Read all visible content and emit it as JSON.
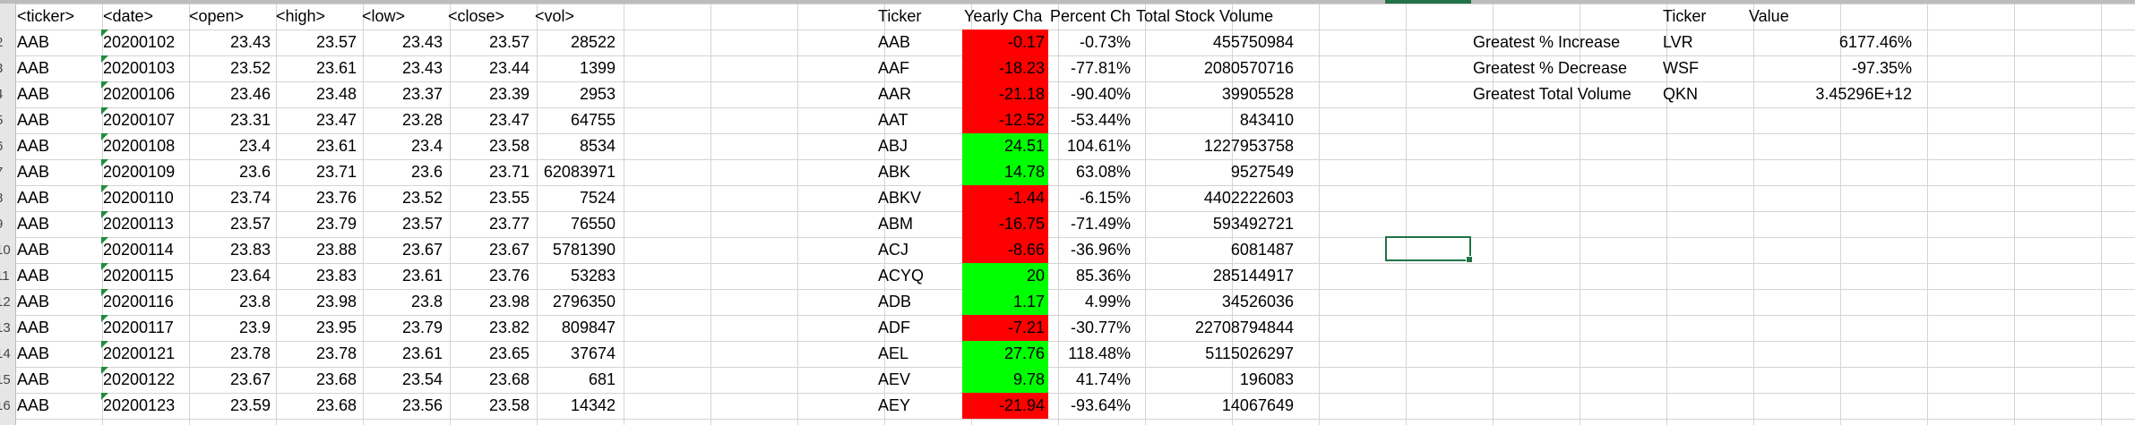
{
  "raw": {
    "headers": [
      "<ticker>",
      "<date>",
      "<open>",
      "<high>",
      "<low>",
      "<close>",
      "<vol>"
    ],
    "rows": [
      [
        "AAB",
        "20200102",
        "23.43",
        "23.57",
        "23.43",
        "23.57",
        "28522"
      ],
      [
        "AAB",
        "20200103",
        "23.52",
        "23.61",
        "23.43",
        "23.44",
        "1399"
      ],
      [
        "AAB",
        "20200106",
        "23.46",
        "23.48",
        "23.37",
        "23.39",
        "2953"
      ],
      [
        "AAB",
        "20200107",
        "23.31",
        "23.47",
        "23.28",
        "23.47",
        "64755"
      ],
      [
        "AAB",
        "20200108",
        "23.4",
        "23.61",
        "23.4",
        "23.58",
        "8534"
      ],
      [
        "AAB",
        "20200109",
        "23.6",
        "23.71",
        "23.6",
        "23.71",
        "62083971"
      ],
      [
        "AAB",
        "20200110",
        "23.74",
        "23.76",
        "23.52",
        "23.55",
        "7524"
      ],
      [
        "AAB",
        "20200113",
        "23.57",
        "23.79",
        "23.57",
        "23.77",
        "76550"
      ],
      [
        "AAB",
        "20200114",
        "23.83",
        "23.88",
        "23.67",
        "23.67",
        "5781390"
      ],
      [
        "AAB",
        "20200115",
        "23.64",
        "23.83",
        "23.61",
        "23.76",
        "53283"
      ],
      [
        "AAB",
        "20200116",
        "23.8",
        "23.98",
        "23.8",
        "23.98",
        "2796350"
      ],
      [
        "AAB",
        "20200117",
        "23.9",
        "23.95",
        "23.79",
        "23.82",
        "809847"
      ],
      [
        "AAB",
        "20200121",
        "23.78",
        "23.78",
        "23.61",
        "23.65",
        "37674"
      ],
      [
        "AAB",
        "20200122",
        "23.67",
        "23.68",
        "23.54",
        "23.68",
        "681"
      ],
      [
        "AAB",
        "20200123",
        "23.59",
        "23.68",
        "23.56",
        "23.58",
        "14342"
      ]
    ]
  },
  "row_numbers": [
    "2",
    "3",
    "4",
    "5",
    "6",
    "7",
    "8",
    "9",
    "10",
    "11",
    "12",
    "13",
    "14",
    "15",
    "16"
  ],
  "summary": {
    "headers": [
      "Ticker",
      "Yearly Cha",
      "Percent Ch",
      "Total Stock Volume"
    ],
    "rows": [
      {
        "ticker": "AAB",
        "change": "-0.17",
        "pct": "-0.73%",
        "vol": "455750984",
        "status": "negative"
      },
      {
        "ticker": "AAF",
        "change": "-18.23",
        "pct": "-77.81%",
        "vol": "2080570716",
        "status": "negative"
      },
      {
        "ticker": "AAR",
        "change": "-21.18",
        "pct": "-90.40%",
        "vol": "39905528",
        "status": "negative"
      },
      {
        "ticker": "AAT",
        "change": "-12.52",
        "pct": "-53.44%",
        "vol": "843410",
        "status": "negative"
      },
      {
        "ticker": "ABJ",
        "change": "24.51",
        "pct": "104.61%",
        "vol": "1227953758",
        "status": "positive"
      },
      {
        "ticker": "ABK",
        "change": "14.78",
        "pct": "63.08%",
        "vol": "9527549",
        "status": "positive"
      },
      {
        "ticker": "ABKV",
        "change": "-1.44",
        "pct": "-6.15%",
        "vol": "4402222603",
        "status": "negative"
      },
      {
        "ticker": "ABM",
        "change": "-16.75",
        "pct": "-71.49%",
        "vol": "593492721",
        "status": "negative"
      },
      {
        "ticker": "ACJ",
        "change": "-8.66",
        "pct": "-36.96%",
        "vol": "6081487",
        "status": "negative"
      },
      {
        "ticker": "ACYQ",
        "change": "20",
        "pct": "85.36%",
        "vol": "285144917",
        "status": "positive"
      },
      {
        "ticker": "ADB",
        "change": "1.17",
        "pct": "4.99%",
        "vol": "34526036",
        "status": "positive"
      },
      {
        "ticker": "ADF",
        "change": "-7.21",
        "pct": "-30.77%",
        "vol": "22708794844",
        "status": "negative"
      },
      {
        "ticker": "AEL",
        "change": "27.76",
        "pct": "118.48%",
        "vol": "5115026297",
        "status": "positive"
      },
      {
        "ticker": "AEV",
        "change": "9.78",
        "pct": "41.74%",
        "vol": "196083",
        "status": "positive"
      },
      {
        "ticker": "AEY",
        "change": "-21.94",
        "pct": "-93.64%",
        "vol": "14067649",
        "status": "negative"
      }
    ]
  },
  "greatest": {
    "headers": [
      "Ticker",
      "Value"
    ],
    "rows": [
      {
        "label": "Greatest % Increase",
        "ticker": "LVR",
        "value": "6177.46%"
      },
      {
        "label": "Greatest % Decrease",
        "ticker": "WSF",
        "value": "-97.35%"
      },
      {
        "label": "Greatest Total Volume",
        "ticker": "QKN",
        "value": "3.45296E+12"
      }
    ]
  },
  "colors": {
    "negative_fill": "#ff0000",
    "positive_fill": "#00ff00",
    "selection_border": "#217346"
  }
}
